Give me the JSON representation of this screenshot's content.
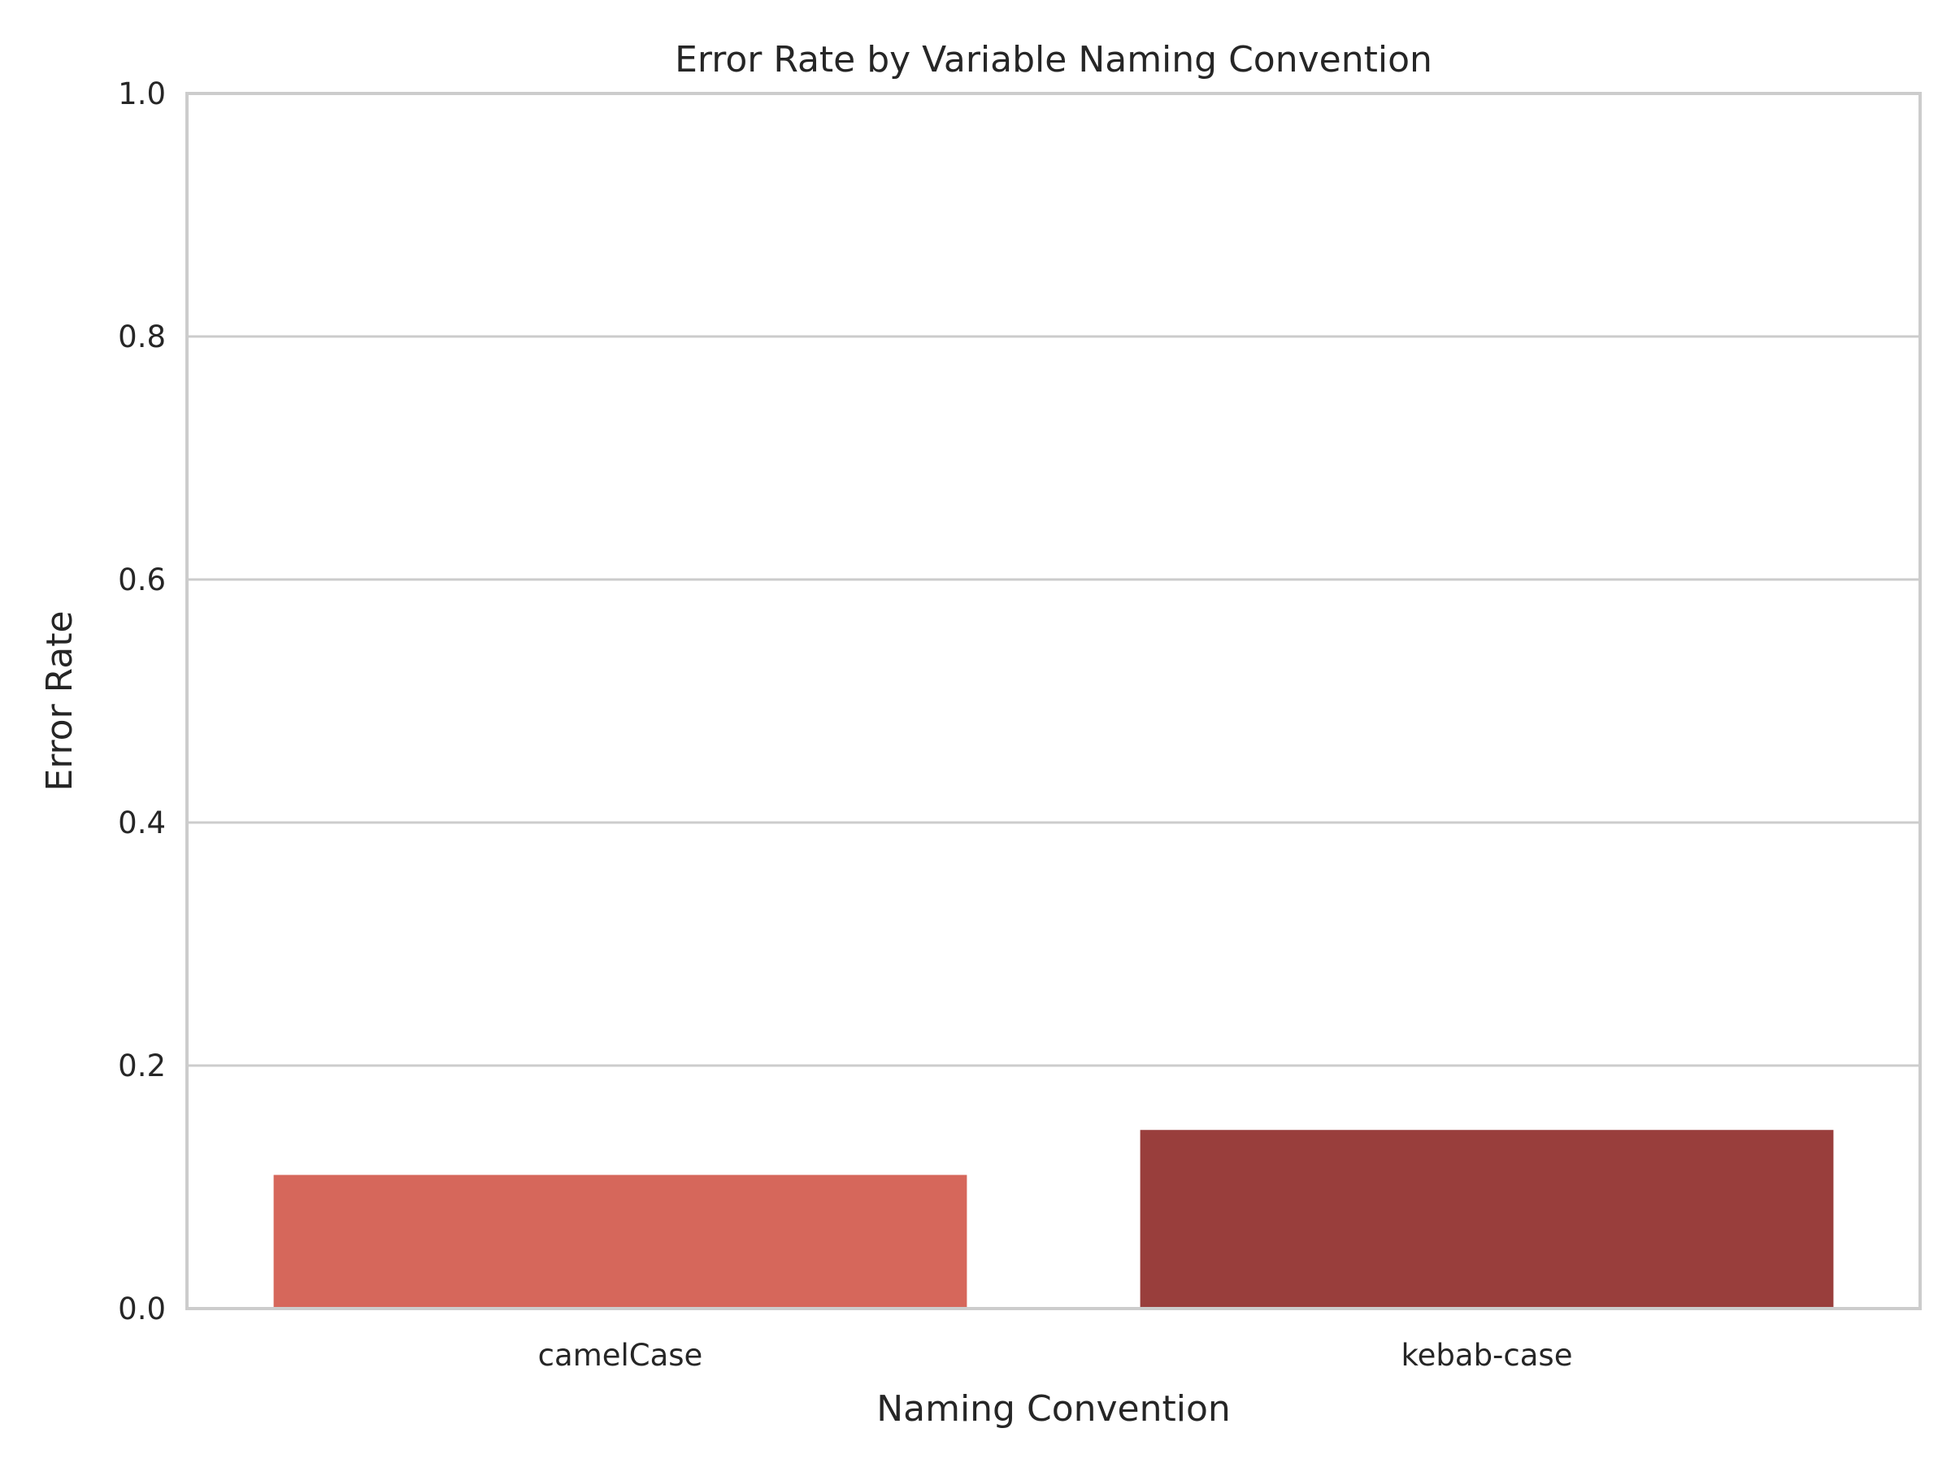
{
  "chart_data": {
    "type": "bar",
    "title": "Error Rate by Variable Naming Convention",
    "xlabel": "Naming Convention",
    "ylabel": "Error Rate",
    "categories": [
      "camelCase",
      "kebab-case"
    ],
    "values": [
      0.11,
      0.147
    ],
    "colors": [
      "#d6675b",
      "#993e3c"
    ],
    "ylim": [
      0,
      1.0
    ],
    "yticks": [
      "0.0",
      "0.2",
      "0.4",
      "0.6",
      "0.8",
      "1.0"
    ],
    "grid": "horizontal",
    "legend": "none"
  },
  "style": {
    "grid_color": "#cccccc",
    "axis_color": "#cccccc",
    "text_color": "#262626"
  }
}
